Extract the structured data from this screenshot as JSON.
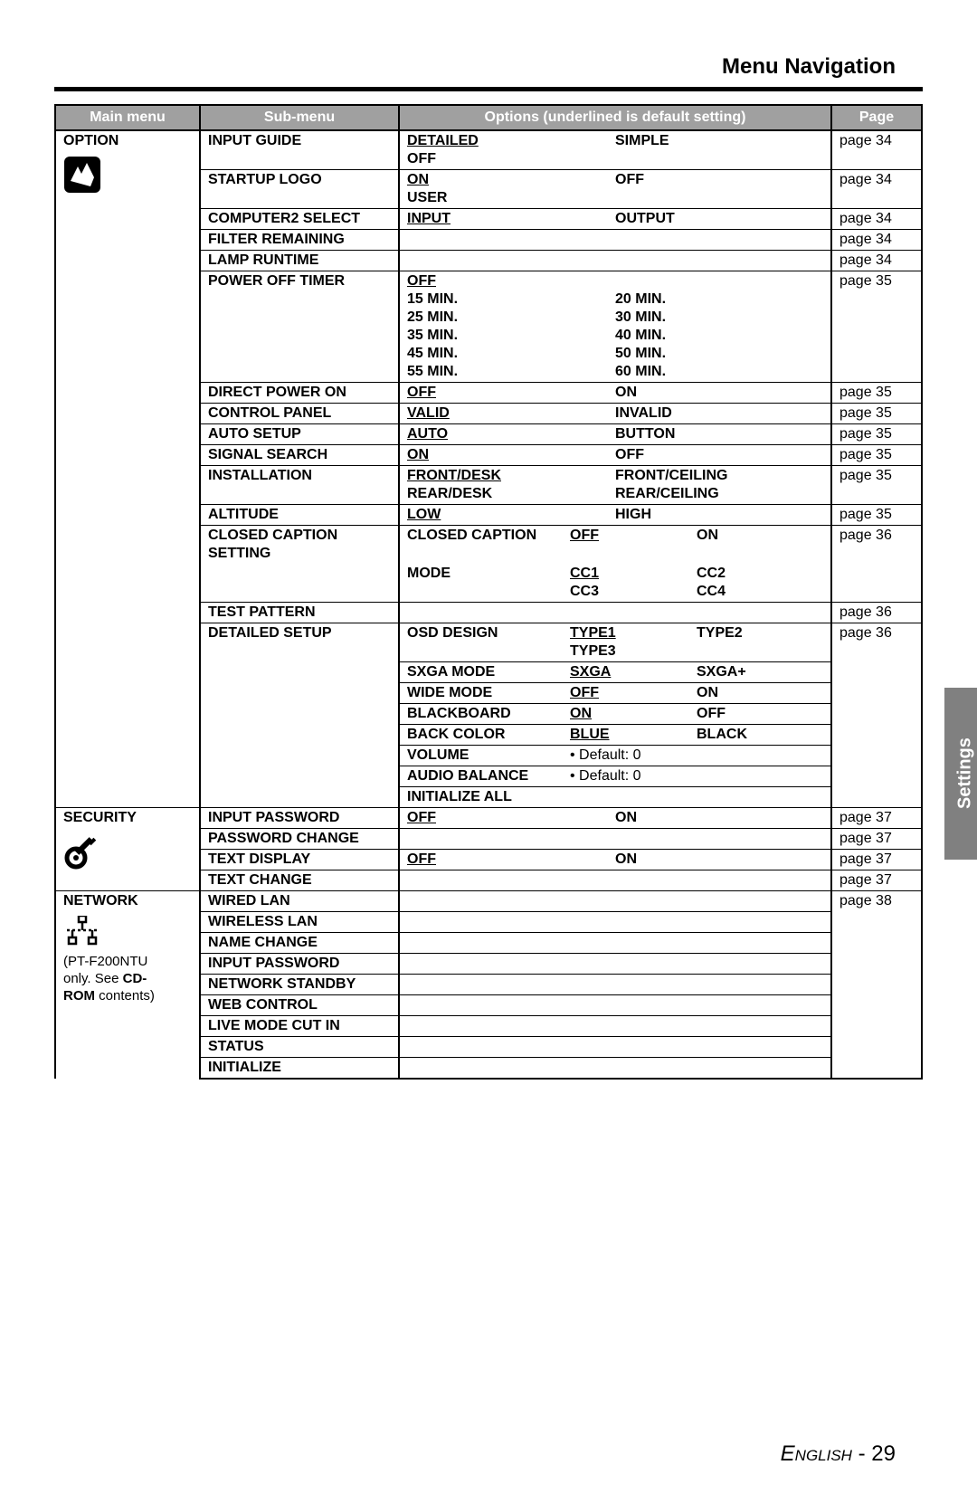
{
  "page_title": "Menu Navigation",
  "headers": {
    "main": "Main menu",
    "sub": "Sub-menu",
    "options": "Options (underlined is default setting)",
    "page": "Page"
  },
  "side_tab": "Settings",
  "footer": {
    "lang": "English",
    "sep": " - ",
    "num": "29"
  },
  "sections": [
    {
      "main": "OPTION",
      "main_note": "",
      "icon": "option-icon",
      "rows": [
        {
          "sub": "INPUT GUIDE",
          "opts": [
            {
              "c1": "DETAILED",
              "u1": true,
              "c2": "SIMPLE"
            },
            {
              "c1": "OFF"
            }
          ],
          "page": "page 34"
        },
        {
          "sub": "STARTUP LOGO",
          "opts": [
            {
              "c1": "ON",
              "u1": true,
              "c2": "OFF"
            },
            {
              "c1": "USER"
            }
          ],
          "page": "page 34"
        },
        {
          "sub": "COMPUTER2 SELECT",
          "opts": [
            {
              "c1": "INPUT",
              "u1": true,
              "c2": "OUTPUT"
            }
          ],
          "page": "page 34"
        },
        {
          "sub": "FILTER REMAINING",
          "opts": [],
          "page": "page 34"
        },
        {
          "sub": "LAMP RUNTIME",
          "opts": [],
          "page": "page 34"
        },
        {
          "sub": "POWER OFF TIMER",
          "opts": [
            {
              "c1": "OFF",
              "u1": true
            },
            {
              "c1": "15 MIN.",
              "c2": "20 MIN."
            },
            {
              "c1": "25 MIN.",
              "c2": "30 MIN."
            },
            {
              "c1": "35 MIN.",
              "c2": "40 MIN."
            },
            {
              "c1": "45 MIN.",
              "c2": "50 MIN."
            },
            {
              "c1": "55 MIN.",
              "c2": "60 MIN."
            }
          ],
          "page": "page 35"
        },
        {
          "sub": "DIRECT POWER ON",
          "opts": [
            {
              "c1": "OFF",
              "u1": true,
              "c2": "ON"
            }
          ],
          "page": "page 35"
        },
        {
          "sub": "CONTROL PANEL",
          "opts": [
            {
              "c1": "VALID",
              "u1": true,
              "c2": "INVALID"
            }
          ],
          "page": "page 35"
        },
        {
          "sub": "AUTO SETUP",
          "opts": [
            {
              "c1": "AUTO",
              "u1": true,
              "c2": "BUTTON"
            }
          ],
          "page": "page 35"
        },
        {
          "sub": "SIGNAL SEARCH",
          "opts": [
            {
              "c1": "ON",
              "u1": true,
              "c2": "OFF"
            }
          ],
          "page": "page 35"
        },
        {
          "sub": "INSTALLATION",
          "opts": [
            {
              "c1": "FRONT/DESK",
              "u1": true,
              "c2": "FRONT/CEILING"
            },
            {
              "c1": "REAR/DESK",
              "c2": "REAR/CEILING"
            }
          ],
          "page": "page 35"
        },
        {
          "sub": "ALTITUDE",
          "opts": [
            {
              "c1": "LOW",
              "u1": true,
              "c2": "HIGH"
            }
          ],
          "page": "page 35"
        },
        {
          "sub": "CLOSED CAPTION SETTING",
          "opts": [
            {
              "lab": "CLOSED CAPTION",
              "c1": "OFF",
              "u1": true,
              "c2": "ON"
            }
          ],
          "page": "page 36"
        },
        {
          "sub": "",
          "opts": [
            {
              "lab": "MODE",
              "c1": "CC1",
              "u1": true,
              "c2": "CC2"
            },
            {
              "lab": "",
              "c1": "CC3",
              "c2": "CC4"
            }
          ],
          "page": ""
        },
        {
          "sub": "TEST PATTERN",
          "opts": [],
          "page": "page 36"
        },
        {
          "sub": "DETAILED SETUP",
          "opts": [
            {
              "lab": "OSD DESIGN",
              "c1": "TYPE1",
              "u1": true,
              "c2": "TYPE2"
            },
            {
              "lab": "",
              "c1": "TYPE3"
            }
          ],
          "page": "page 36"
        },
        {
          "sub": "",
          "opts": [
            {
              "lab": "SXGA MODE",
              "c1": "SXGA",
              "u1": true,
              "c2": "SXGA+"
            }
          ],
          "page": "",
          "bt": true
        },
        {
          "sub": "",
          "opts": [
            {
              "lab": "WIDE MODE",
              "c1": "OFF",
              "u1": true,
              "c2": "ON"
            }
          ],
          "page": "",
          "bt": true
        },
        {
          "sub": "",
          "opts": [
            {
              "lab": "BLACKBOARD",
              "c1": "ON",
              "u1": true,
              "c2": "OFF"
            }
          ],
          "page": "",
          "bt": true
        },
        {
          "sub": "",
          "opts": [
            {
              "lab": "BACK COLOR",
              "c1": "BLUE",
              "u1": true,
              "c2": "BLACK"
            }
          ],
          "page": "",
          "bt": true
        },
        {
          "sub": "",
          "opts": [
            {
              "lab": "VOLUME",
              "c1": "•  Default: 0",
              "plain": true
            }
          ],
          "page": "",
          "bt": true
        },
        {
          "sub": "",
          "opts": [
            {
              "lab": "AUDIO BALANCE",
              "c1": "•  Default: 0",
              "plain": true
            }
          ],
          "page": "",
          "bt": true
        },
        {
          "sub": "",
          "opts": [
            {
              "lab": "INITIALIZE ALL"
            }
          ],
          "page": "",
          "bt": true
        }
      ]
    },
    {
      "main": "SECURITY",
      "icon": "security-icon",
      "rows": [
        {
          "sub": "INPUT PASSWORD",
          "opts": [
            {
              "c1": "OFF",
              "u1": true,
              "c2": "ON"
            }
          ],
          "page": "page 37"
        },
        {
          "sub": "PASSWORD CHANGE",
          "opts": [],
          "page": "page 37"
        },
        {
          "sub": "TEXT DISPLAY",
          "opts": [
            {
              "c1": "OFF",
              "u1": true,
              "c2": "ON"
            }
          ],
          "page": "page 37"
        },
        {
          "sub": "TEXT CHANGE",
          "opts": [],
          "page": "page 37"
        }
      ]
    },
    {
      "main": "NETWORK",
      "icon": "network-icon",
      "main_note_lines": [
        "(PT-F200NTU",
        "only. See CD-",
        "ROM contents)"
      ],
      "main_note_bold": {
        "1": "CD-",
        "2": "ROM"
      },
      "rows": [
        {
          "sub": "WIRED LAN",
          "opts": [],
          "page": "page 38"
        },
        {
          "sub": "WIRELESS LAN",
          "opts": [],
          "page": ""
        },
        {
          "sub": "NAME CHANGE",
          "opts": [],
          "page": ""
        },
        {
          "sub": "INPUT PASSWORD",
          "opts": [],
          "page": ""
        },
        {
          "sub": "NETWORK STANDBY",
          "opts": [],
          "page": ""
        },
        {
          "sub": "WEB CONTROL",
          "opts": [],
          "page": ""
        },
        {
          "sub": "LIVE MODE CUT IN",
          "opts": [],
          "page": ""
        },
        {
          "sub": "STATUS",
          "opts": [],
          "page": ""
        },
        {
          "sub": "INITIALIZE",
          "opts": [],
          "page": ""
        }
      ]
    }
  ]
}
